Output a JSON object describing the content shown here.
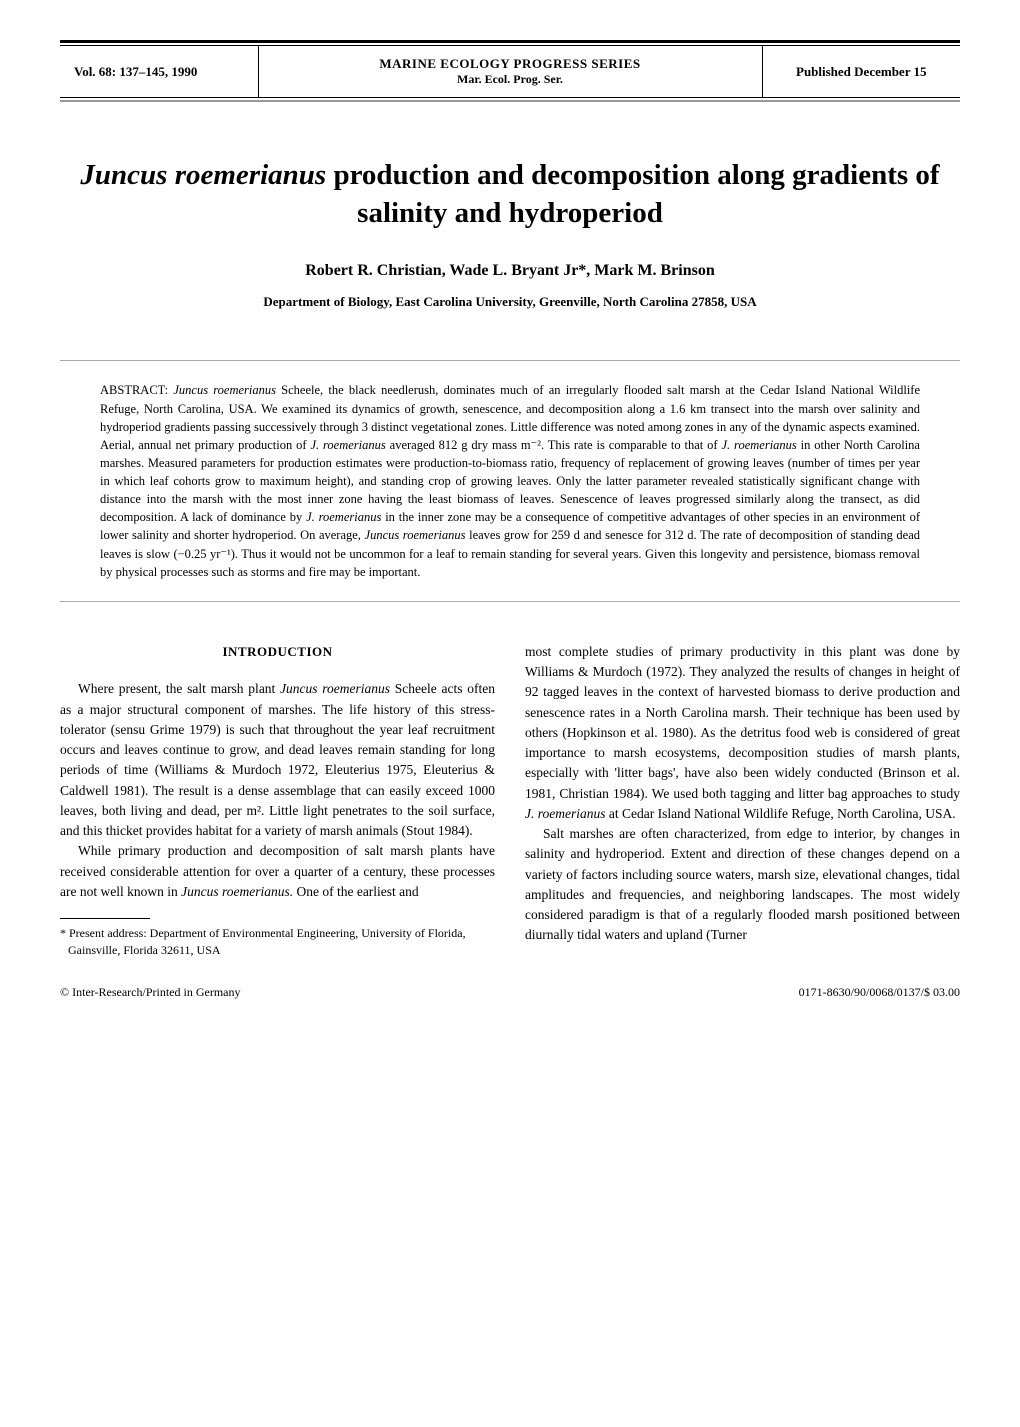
{
  "header": {
    "volume_info": "Vol. 68: 137–145, 1990",
    "journal_name": "MARINE ECOLOGY PROGRESS SERIES",
    "journal_abbr": "Mar. Ecol. Prog. Ser.",
    "published": "Published December 15"
  },
  "title": {
    "line1_italic": "Juncus roemerianus",
    "line1_rest": " production and decomposition along gradients of salinity and hydroperiod"
  },
  "authors": "Robert R. Christian, Wade L. Bryant Jr*, Mark M. Brinson",
  "affiliation": "Department of Biology, East Carolina University, Greenville, North Carolina 27858, USA",
  "abstract": {
    "label": "ABSTRACT: ",
    "text_parts": {
      "p1a": "Juncus roemerianus",
      "p1b": " Scheele, the black needlerush, dominates much of an irregularly flooded salt marsh at the Cedar Island National Wildlife Refuge, North Carolina, USA. We examined its dynamics of growth, senescence, and decomposition along a 1.6 km transect into the marsh over salinity and hydroperiod gradients passing successively through 3 distinct vegetational zones. Little difference was noted among zones in any of the dynamic aspects examined. Aerial, annual net primary production of ",
      "p1c": "J. roemerianus",
      "p1d": " averaged 812 g dry mass m⁻². This rate is comparable to that of ",
      "p1e": "J. roemerianus",
      "p1f": " in other North Carolina marshes. Measured parameters for production estimates were production-to-biomass ratio, frequency of replacement of growing leaves (number of times per year in which leaf cohorts grow to maximum height), and standing crop of growing leaves. Only the latter parameter revealed statistically significant change with distance into the marsh with the most inner zone having the least biomass of leaves. Senescence of leaves progressed similarly along the transect, as did decomposition. A lack of dominance by ",
      "p1g": "J. roemerianus",
      "p1h": " in the inner zone may be a consequence of competitive advantages of other species in an environment of lower salinity and shorter hydroperiod. On average, ",
      "p1i": "Juncus roemerianus",
      "p1j": " leaves grow for 259 d and senesce for 312 d. The rate of decomposition of standing dead leaves is slow (−0.25 yr⁻¹). Thus it would not be uncommon for a leaf to remain standing for several years. Given this longevity and persistence, biomass removal by physical processes such as storms and fire may be important."
    }
  },
  "section_heading": "INTRODUCTION",
  "body": {
    "col1": {
      "p1a": "Where present, the salt marsh plant ",
      "p1b": "Juncus roemerianus",
      "p1c": " Scheele acts often as a major structural component of marshes. The life history of this stress-tolerator (sensu Grime 1979) is such that throughout the year leaf recruitment occurs and leaves continue to grow, and dead leaves remain standing for long periods of time (Williams & Murdoch 1972, Eleuterius 1975, Eleuterius & Caldwell 1981). The result is a dense assemblage that can easily exceed 1000 leaves, both living and dead, per m². Little light penetrates to the soil surface, and this thicket provides habitat for a variety of marsh animals (Stout 1984).",
      "p2a": "While primary production and decomposition of salt marsh plants have received considerable attention for over a quarter of a century, these processes are not well known in ",
      "p2b": "Juncus roemerianus.",
      "p2c": " One of the earliest and"
    },
    "col2": {
      "p1a": "most complete studies of primary productivity in this plant was done by Williams & Murdoch (1972). They analyzed the results of changes in height of 92 tagged leaves in the context of harvested biomass to derive production and senescence rates in a North Carolina marsh. Their technique has been used by others (Hopkinson et al. 1980). As the detritus food web is considered of great importance to marsh ecosystems, decomposition studies of marsh plants, especially with 'litter bags', have also been widely conducted (Brinson et al. 1981, Christian 1984). We used both tagging and litter bag approaches to study ",
      "p1b": "J. roemerianus",
      "p1c": " at Cedar Island National Wildlife Refuge, North Carolina, USA.",
      "p2": "Salt marshes are often characterized, from edge to interior, by changes in salinity and hydroperiod. Extent and direction of these changes depend on a variety of factors including source waters, marsh size, elevational changes, tidal amplitudes and frequencies, and neighboring landscapes. The most widely considered paradigm is that of a regularly flooded marsh positioned between diurnally tidal waters and upland (Turner"
    }
  },
  "footnote": "* Present address: Department of Environmental Engineering, University of Florida, Gainsville, Florida 32611, USA",
  "footer": {
    "left": "© Inter-Research/Printed in Germany",
    "right": "0171-8630/90/0068/0137/$ 03.00"
  }
}
